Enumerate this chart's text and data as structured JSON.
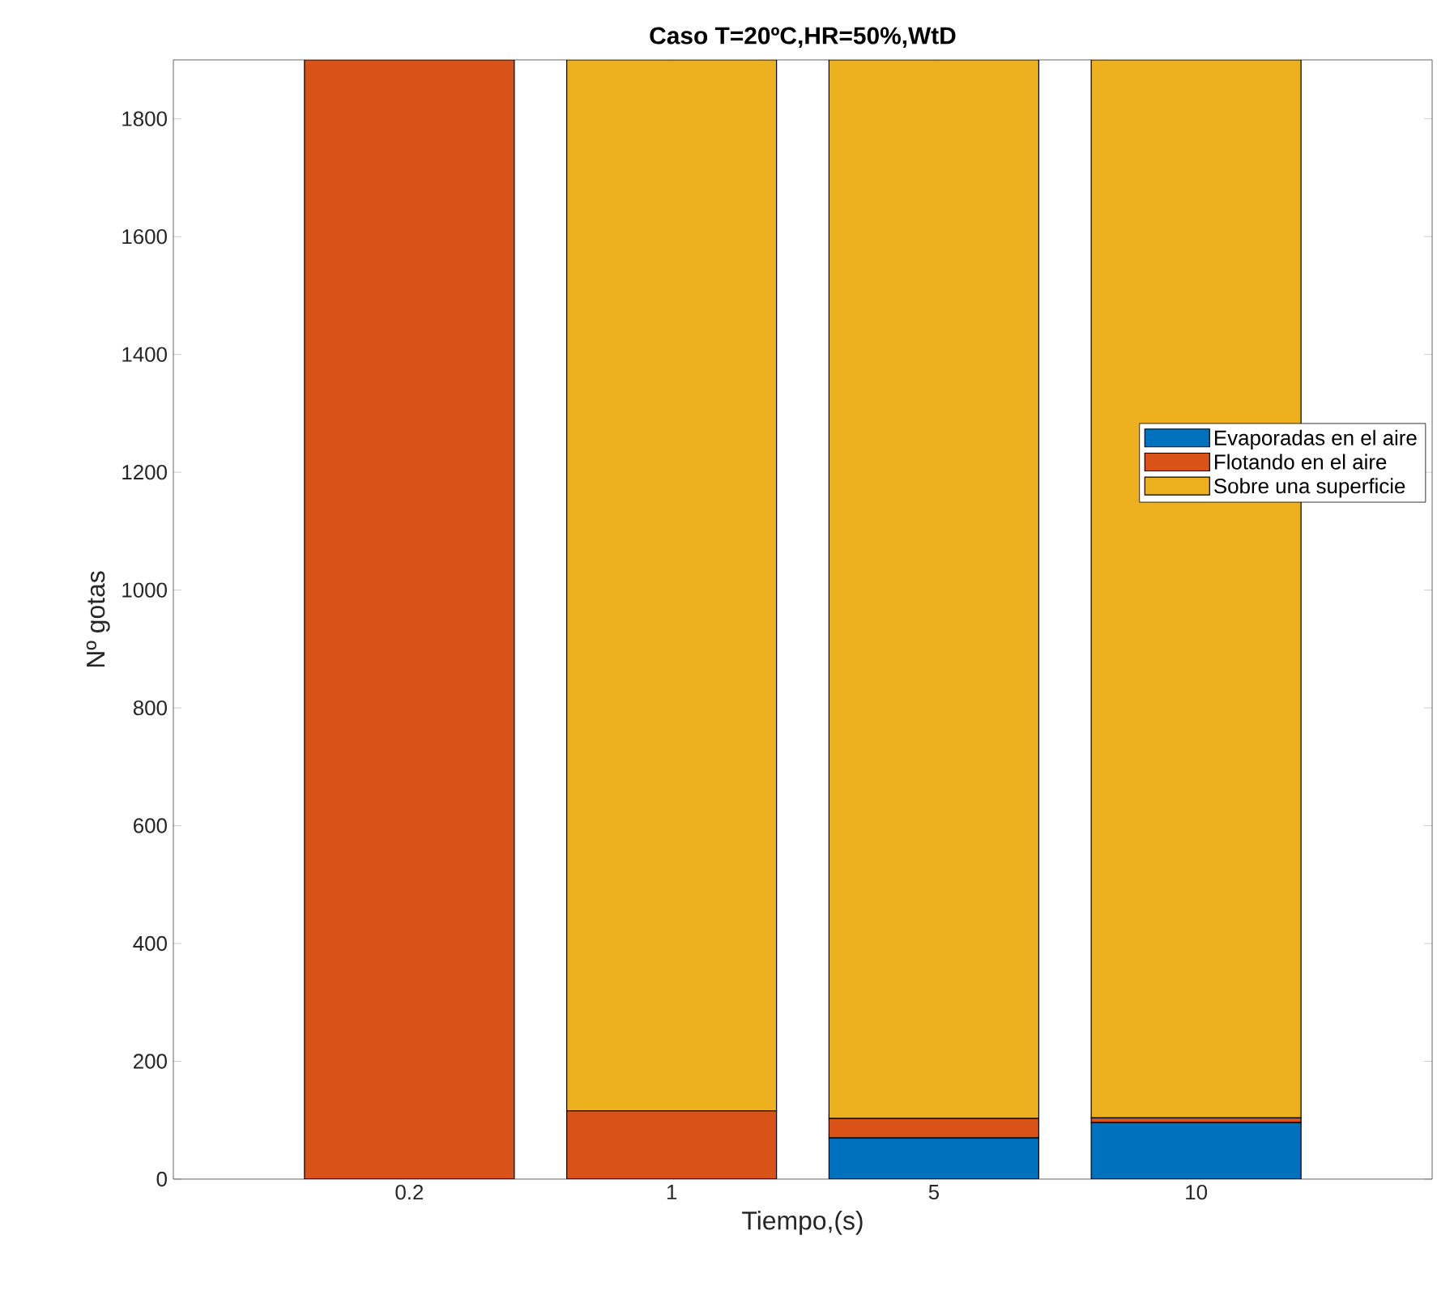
{
  "chart_data": {
    "type": "bar",
    "stacked": true,
    "title": "Caso T=20ºC,HR=50%,WtD",
    "xlabel": "Tiempo,(s)",
    "ylabel": "Nº gotas",
    "categories": [
      "0.2",
      "1",
      "5",
      "10"
    ],
    "series": [
      {
        "name": "Evaporadas en el aire",
        "color": "#0072bd",
        "values": [
          0,
          0,
          70,
          96
        ]
      },
      {
        "name": "Flotando en el aire",
        "color": "#d95319",
        "values": [
          1900,
          116,
          33,
          8
        ]
      },
      {
        "name": "Sobre una superficie",
        "color": "#edb120",
        "values": [
          0,
          1784,
          1797,
          1796
        ]
      }
    ],
    "ylim": [
      0,
      1900
    ],
    "yticks": [
      0,
      200,
      400,
      600,
      800,
      1000,
      1200,
      1400,
      1600,
      1800
    ],
    "legend": "right"
  }
}
